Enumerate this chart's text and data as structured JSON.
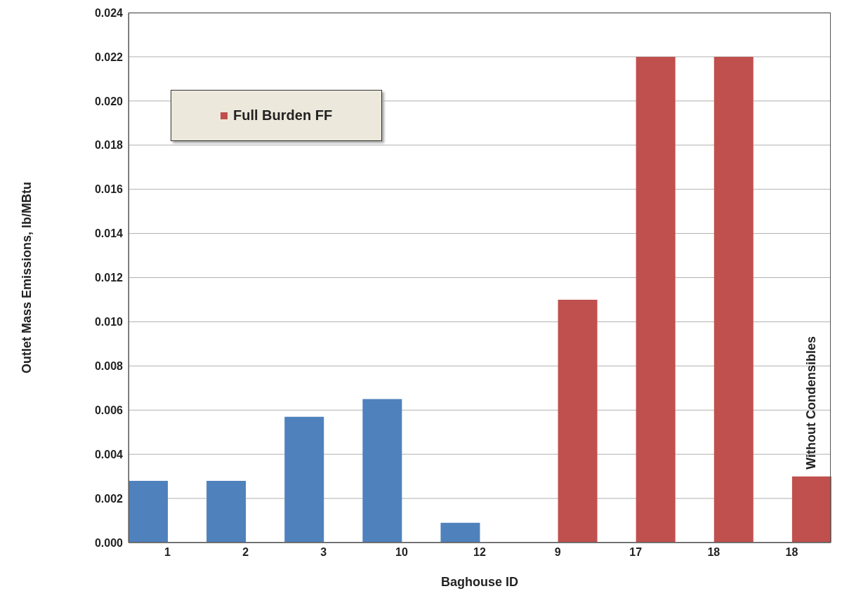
{
  "chart_data": {
    "type": "bar",
    "xlabel": "Baghouse ID",
    "ylabel": "Outlet Mass Emissions, lb/MBtu",
    "categories": [
      "1",
      "2",
      "3",
      "10",
      "12",
      "9",
      "17",
      "18",
      "18"
    ],
    "series": [
      {
        "color": "#4f81bd",
        "values": [
          0.0028,
          0.0028,
          0.0057,
          0.0065,
          0.0009,
          null,
          null,
          null,
          null
        ]
      },
      {
        "name": "Full Burden FF",
        "color": "#c0504d",
        "values": [
          null,
          null,
          null,
          null,
          null,
          0.011,
          0.022,
          0.022,
          0.003
        ]
      }
    ],
    "ylim": [
      0,
      0.024
    ],
    "yticks": [
      {
        "value": 0,
        "label": "0.000"
      },
      {
        "value": 0.002,
        "label": "0.002"
      },
      {
        "value": 0.004,
        "label": "0.004"
      },
      {
        "value": 0.006,
        "label": "0.006"
      },
      {
        "value": 0.008,
        "label": "0.008"
      },
      {
        "value": 0.01,
        "label": "0.010"
      },
      {
        "value": 0.012,
        "label": "0.012"
      },
      {
        "value": 0.014,
        "label": "0.014"
      },
      {
        "value": 0.016,
        "label": "0.016"
      },
      {
        "value": 0.018,
        "label": "0.018"
      },
      {
        "value": 0.02,
        "label": "0.020"
      },
      {
        "value": 0.022,
        "label": "0.022"
      },
      {
        "value": 0.024,
        "label": "0.024"
      }
    ],
    "grid": "y",
    "legend": "top left",
    "annotations": [
      "Without Condensibles"
    ]
  }
}
